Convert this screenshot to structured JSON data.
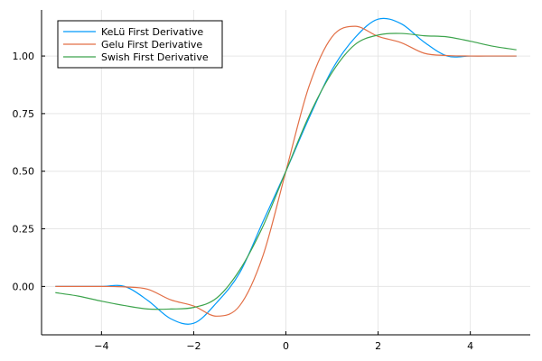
{
  "chart_data": {
    "type": "line",
    "title": "",
    "xlabel": "",
    "ylabel": "",
    "xlim": [
      -5.3,
      5.3
    ],
    "ylim": [
      -0.21,
      1.2
    ],
    "x_ticks": [
      -4,
      -2,
      0,
      2,
      4
    ],
    "x_tick_labels": [
      "−4",
      "−2",
      "0",
      "2",
      "4"
    ],
    "y_ticks": [
      0.0,
      0.25,
      0.5,
      0.75,
      1.0
    ],
    "y_tick_labels": [
      "0.00",
      "0.25",
      "0.50",
      "0.75",
      "1.00"
    ],
    "grid": true,
    "legend_position": "top-left",
    "x": [
      -5.0,
      -4.5,
      -4.0,
      -3.5,
      -3.0,
      -2.5,
      -2.0,
      -1.5,
      -1.0,
      -0.5,
      0.0,
      0.5,
      1.0,
      1.5,
      2.0,
      2.5,
      3.0,
      3.5,
      4.0,
      4.5,
      5.0
    ],
    "series": [
      {
        "name": "KeLü First Derivative",
        "color": "#009AFA",
        "values": [
          0.0,
          0.0,
          0.0,
          0.0,
          -0.06,
          -0.14,
          -0.16,
          -0.07,
          0.06,
          0.28,
          0.5,
          0.73,
          0.94,
          1.08,
          1.16,
          1.14,
          1.06,
          1.0,
          1.0,
          1.0,
          1.0
        ]
      },
      {
        "name": "Gelu First Derivative",
        "color": "#E26F46",
        "values": [
          0.0,
          0.0,
          0.0,
          -0.002,
          -0.012,
          -0.058,
          -0.085,
          -0.129,
          -0.083,
          0.132,
          0.5,
          0.868,
          1.083,
          1.129,
          1.085,
          1.058,
          1.012,
          1.002,
          1.0,
          1.0,
          1.0
        ]
      },
      {
        "name": "Swish First Derivative",
        "color": "#3DA44D",
        "values": [
          -0.027,
          -0.042,
          -0.064,
          -0.083,
          -0.098,
          -0.098,
          -0.091,
          -0.05,
          0.072,
          0.26,
          0.5,
          0.74,
          0.928,
          1.05,
          1.091,
          1.098,
          1.088,
          1.083,
          1.064,
          1.042,
          1.027
        ]
      }
    ]
  }
}
